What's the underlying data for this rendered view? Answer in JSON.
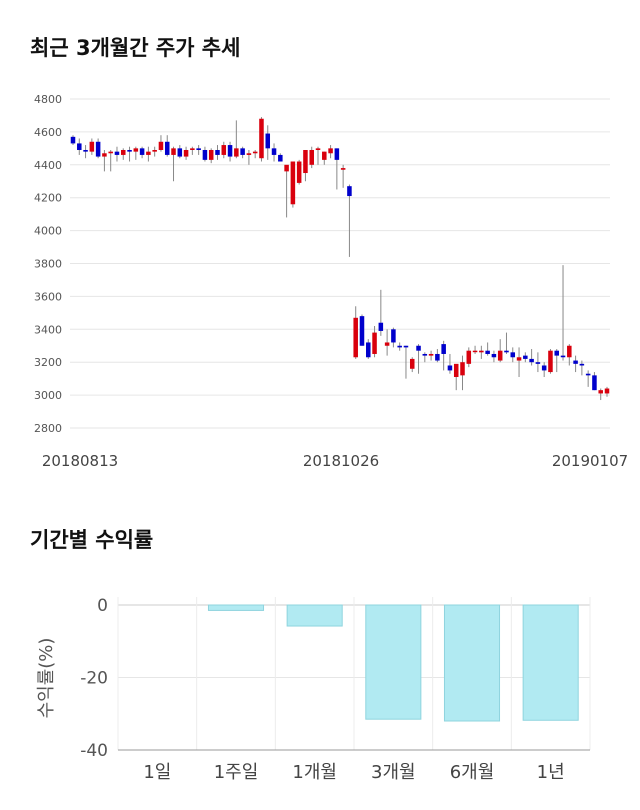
{
  "candle_section": {
    "title": "최근 3개월간 주가 추세",
    "chart_data": {
      "type": "candlestick",
      "y_ticks": [
        4800,
        4600,
        4400,
        4200,
        4000,
        3800,
        3600,
        3400,
        3200,
        3000,
        2800
      ],
      "ylim": [
        2800,
        4800
      ],
      "x_tick_labels": [
        "20180813",
        "20181026",
        "20190107"
      ],
      "grid": true,
      "up_color": "#d9000d",
      "down_color": "#0000cc",
      "ohlc": [
        [
          4570,
          4580,
          4520,
          4530
        ],
        [
          4530,
          4560,
          4460,
          4490
        ],
        [
          4490,
          4520,
          4440,
          4480
        ],
        [
          4480,
          4560,
          4460,
          4540
        ],
        [
          4540,
          4560,
          4440,
          4450
        ],
        [
          4450,
          4490,
          4360,
          4470
        ],
        [
          4470,
          4490,
          4360,
          4480
        ],
        [
          4480,
          4510,
          4420,
          4460
        ],
        [
          4460,
          4500,
          4430,
          4490
        ],
        [
          4490,
          4510,
          4420,
          4480
        ],
        [
          4480,
          4510,
          4430,
          4500
        ],
        [
          4500,
          4510,
          4440,
          4460
        ],
        [
          4460,
          4510,
          4420,
          4480
        ],
        [
          4480,
          4510,
          4450,
          4490
        ],
        [
          4490,
          4580,
          4480,
          4540
        ],
        [
          4540,
          4580,
          4450,
          4460
        ],
        [
          4460,
          4510,
          4300,
          4500
        ],
        [
          4500,
          4520,
          4440,
          4450
        ],
        [
          4450,
          4510,
          4430,
          4490
        ],
        [
          4490,
          4510,
          4460,
          4500
        ],
        [
          4500,
          4520,
          4460,
          4490
        ],
        [
          4490,
          4510,
          4420,
          4430
        ],
        [
          4430,
          4500,
          4410,
          4490
        ],
        [
          4490,
          4520,
          4430,
          4460
        ],
        [
          4460,
          4540,
          4440,
          4520
        ],
        [
          4520,
          4540,
          4420,
          4450
        ],
        [
          4450,
          4670,
          4440,
          4500
        ],
        [
          4500,
          4510,
          4440,
          4460
        ],
        [
          4460,
          4490,
          4400,
          4470
        ],
        [
          4470,
          4490,
          4440,
          4480
        ],
        [
          4440,
          4690,
          4420,
          4680
        ],
        [
          4590,
          4640,
          4430,
          4500
        ],
        [
          4500,
          4530,
          4420,
          4460
        ],
        [
          4460,
          4470,
          4420,
          4420
        ],
        [
          4360,
          4390,
          4080,
          4400
        ],
        [
          4160,
          4420,
          4140,
          4420
        ],
        [
          4290,
          4430,
          4280,
          4420
        ],
        [
          4350,
          4480,
          4300,
          4490
        ],
        [
          4400,
          4510,
          4380,
          4490
        ],
        [
          4490,
          4510,
          4400,
          4500
        ],
        [
          4430,
          4480,
          4400,
          4480
        ],
        [
          4470,
          4520,
          4440,
          4500
        ],
        [
          4500,
          4500,
          4250,
          4430
        ],
        [
          4370,
          4400,
          4260,
          4380
        ],
        [
          4270,
          4280,
          3840,
          4210
        ],
        [
          3230,
          3540,
          3220,
          3470
        ],
        [
          3480,
          3490,
          3300,
          3300
        ],
        [
          3320,
          3340,
          3220,
          3230
        ],
        [
          3250,
          3420,
          3230,
          3380
        ],
        [
          3440,
          3640,
          3360,
          3390
        ],
        [
          3300,
          3400,
          3240,
          3320
        ],
        [
          3400,
          3410,
          3290,
          3320
        ],
        [
          3300,
          3320,
          3270,
          3290
        ],
        [
          3300,
          3300,
          3100,
          3290
        ],
        [
          3160,
          3230,
          3140,
          3220
        ],
        [
          3300,
          3310,
          3130,
          3270
        ],
        [
          3250,
          3260,
          3200,
          3240
        ],
        [
          3240,
          3270,
          3210,
          3250
        ],
        [
          3250,
          3280,
          3200,
          3210
        ],
        [
          3310,
          3330,
          3150,
          3250
        ],
        [
          3180,
          3250,
          3130,
          3150
        ],
        [
          3110,
          3170,
          3030,
          3190
        ],
        [
          3120,
          3240,
          3030,
          3200
        ],
        [
          3190,
          3290,
          3170,
          3270
        ],
        [
          3270,
          3300,
          3250,
          3270
        ],
        [
          3260,
          3300,
          3220,
          3270
        ],
        [
          3270,
          3320,
          3240,
          3250
        ],
        [
          3250,
          3270,
          3200,
          3230
        ],
        [
          3210,
          3340,
          3200,
          3270
        ],
        [
          3270,
          3380,
          3250,
          3260
        ],
        [
          3260,
          3290,
          3200,
          3230
        ],
        [
          3210,
          3290,
          3110,
          3230
        ],
        [
          3240,
          3260,
          3200,
          3220
        ],
        [
          3220,
          3280,
          3180,
          3200
        ],
        [
          3200,
          3260,
          3140,
          3190
        ],
        [
          3180,
          3200,
          3110,
          3150
        ],
        [
          3140,
          3280,
          3130,
          3270
        ],
        [
          3270,
          3280,
          3140,
          3240
        ],
        [
          3240,
          3790,
          3210,
          3230
        ],
        [
          3230,
          3310,
          3180,
          3300
        ],
        [
          3210,
          3240,
          3140,
          3190
        ],
        [
          3190,
          3210,
          3120,
          3180
        ],
        [
          3130,
          3150,
          3050,
          3120
        ],
        [
          3120,
          3140,
          3030,
          3030
        ],
        [
          3010,
          3040,
          2970,
          3030
        ],
        [
          3010,
          3050,
          2990,
          3040
        ]
      ]
    }
  },
  "returns_section": {
    "title": "기간별 수익률",
    "chart_data": {
      "type": "bar",
      "categories": [
        "1일",
        "1주일",
        "1개월",
        "3개월",
        "6개월",
        "1년"
      ],
      "values": [
        0,
        -1.5,
        -5.8,
        -31.5,
        -32.0,
        -31.8
      ],
      "ylabel": "수익률(%)",
      "y_ticks": [
        0,
        -20,
        -40
      ],
      "ylim": [
        -40,
        0
      ],
      "bar_color": "#b1eaf2",
      "bar_edge_color": "#8fd4de"
    }
  }
}
